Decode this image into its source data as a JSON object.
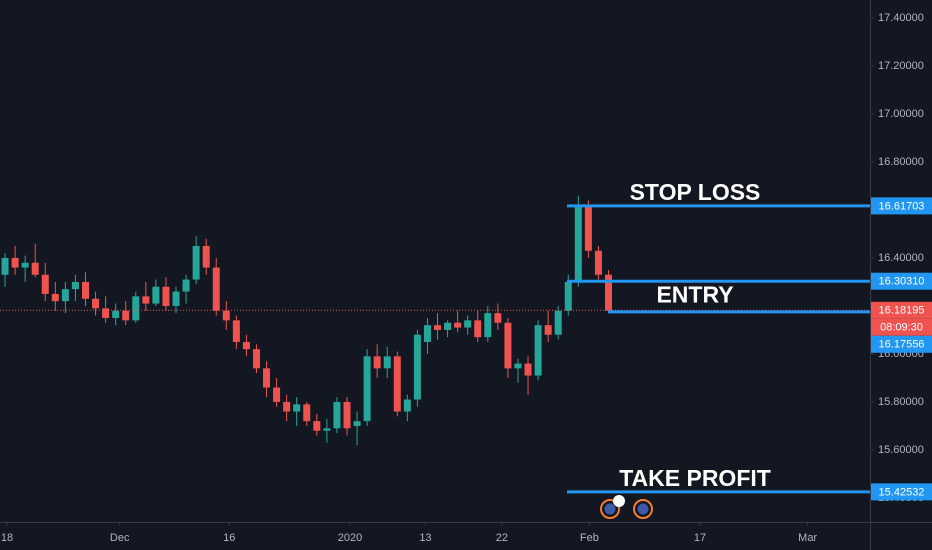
{
  "chart_data": {
    "type": "candlestick",
    "x": [
      0,
      1,
      2,
      3,
      4,
      5,
      6,
      7,
      8,
      9,
      10,
      11,
      12,
      13,
      14,
      15,
      16,
      17,
      18,
      19,
      20,
      21,
      22,
      23,
      24,
      25,
      26,
      27,
      28,
      29,
      30,
      31,
      32,
      33,
      34,
      35,
      36,
      37,
      38,
      39,
      40,
      41,
      42,
      43,
      44,
      45,
      46,
      47,
      48,
      49,
      50,
      51,
      52,
      53,
      54,
      55,
      56,
      57,
      58,
      59,
      60
    ],
    "open": [
      16.33,
      16.4,
      16.36,
      16.38,
      16.33,
      16.25,
      16.22,
      16.27,
      16.3,
      16.23,
      16.19,
      16.15,
      16.18,
      16.14,
      16.24,
      16.21,
      16.28,
      16.2,
      16.26,
      16.31,
      16.45,
      16.36,
      16.18,
      16.14,
      16.05,
      16.02,
      15.94,
      15.86,
      15.8,
      15.76,
      15.79,
      15.72,
      15.68,
      15.69,
      15.8,
      15.7,
      15.72,
      15.99,
      15.94,
      15.99,
      15.76,
      15.81,
      16.05,
      16.12,
      16.1,
      16.13,
      16.11,
      16.14,
      16.07,
      16.17,
      16.13,
      15.94,
      15.96,
      15.91,
      16.12,
      16.08,
      16.18,
      16.3,
      16.62,
      16.43,
      16.33
    ],
    "high": [
      16.42,
      16.45,
      16.41,
      16.46,
      16.38,
      16.3,
      16.3,
      16.33,
      16.34,
      16.26,
      16.24,
      16.21,
      16.22,
      16.26,
      16.3,
      16.31,
      16.32,
      16.28,
      16.33,
      16.49,
      16.48,
      16.4,
      16.22,
      16.16,
      16.08,
      16.04,
      15.97,
      15.9,
      15.83,
      15.82,
      15.8,
      15.75,
      15.73,
      15.82,
      15.82,
      15.76,
      16.02,
      16.04,
      16.03,
      16.01,
      15.83,
      16.1,
      16.15,
      16.17,
      16.14,
      16.18,
      16.16,
      16.18,
      16.2,
      16.21,
      16.15,
      15.98,
      15.99,
      16.14,
      16.18,
      16.2,
      16.33,
      16.66,
      16.64,
      16.45,
      16.35
    ],
    "low": [
      16.28,
      16.33,
      16.3,
      16.32,
      16.22,
      16.18,
      16.17,
      16.22,
      16.2,
      16.16,
      16.13,
      16.12,
      16.12,
      16.13,
      16.18,
      16.2,
      16.18,
      16.17,
      16.21,
      16.29,
      16.33,
      16.16,
      16.1,
      16.02,
      15.99,
      15.92,
      15.82,
      15.78,
      15.72,
      15.7,
      15.7,
      15.66,
      15.63,
      15.67,
      15.66,
      15.62,
      15.7,
      15.9,
      15.9,
      15.74,
      15.72,
      15.78,
      16.0,
      16.06,
      16.07,
      16.09,
      16.08,
      16.05,
      16.05,
      16.1,
      15.9,
      15.88,
      15.83,
      15.89,
      16.05,
      16.06,
      16.16,
      16.28,
      16.4,
      16.31,
      16.17
    ],
    "close": [
      16.4,
      16.36,
      16.38,
      16.33,
      16.25,
      16.22,
      16.27,
      16.3,
      16.23,
      16.19,
      16.15,
      16.18,
      16.14,
      16.24,
      16.21,
      16.28,
      16.2,
      16.26,
      16.31,
      16.45,
      16.36,
      16.18,
      16.14,
      16.05,
      16.02,
      15.94,
      15.86,
      15.8,
      15.76,
      15.79,
      15.72,
      15.68,
      15.69,
      15.8,
      15.69,
      15.72,
      15.99,
      15.94,
      15.99,
      15.76,
      15.81,
      16.08,
      16.12,
      16.1,
      16.13,
      16.11,
      16.14,
      16.07,
      16.17,
      16.13,
      15.94,
      15.96,
      15.91,
      16.12,
      16.08,
      16.18,
      16.3,
      16.62,
      16.43,
      16.33,
      16.18
    ],
    "up_color": "#26a69a",
    "down_color": "#ef5350",
    "ylim": [
      15.308,
      17.475
    ],
    "yticks": [
      {
        "value": 17.4,
        "label": "17.40000"
      },
      {
        "value": 17.2,
        "label": "17.20000"
      },
      {
        "value": 17.0,
        "label": "17.00000"
      },
      {
        "value": 16.8,
        "label": "16.80000"
      },
      {
        "value": 16.4,
        "label": "16.40000"
      },
      {
        "value": 16.0,
        "label": "16.00000"
      },
      {
        "value": 15.8,
        "label": "15.80000"
      },
      {
        "value": 15.6,
        "label": "15.60000"
      },
      {
        "value": 15.4,
        "label": "15.40000"
      }
    ],
    "xlim": [
      -0.5,
      86
    ],
    "xticks": [
      {
        "value": 0.2,
        "label": "18"
      },
      {
        "value": 11.4,
        "label": "Dec"
      },
      {
        "value": 22.3,
        "label": "16"
      },
      {
        "value": 34.3,
        "label": "2020"
      },
      {
        "value": 41.8,
        "label": "13"
      },
      {
        "value": 49.4,
        "label": "22"
      },
      {
        "value": 58.1,
        "label": "Feb"
      },
      {
        "value": 69.1,
        "label": "17"
      },
      {
        "value": 79.8,
        "label": "Mar"
      }
    ],
    "level_color": "#2196f3",
    "levels": [
      {
        "text": "STOP LOSS",
        "value": 16.61703,
        "value_label": "16.61703"
      },
      {
        "text": "ENTRY",
        "value": 16.3031,
        "value_label": "16.30310"
      },
      {
        "value": 16.17556,
        "value_label": "16.17556"
      },
      {
        "text": "TAKE PROFIT",
        "value": 15.42532,
        "value_label": "15.42532"
      }
    ],
    "current_price": {
      "value": 16.18195,
      "value_label": "16.18195",
      "countdown": "08:09:30",
      "color": "#ef5350"
    },
    "events": {
      "badge": "3"
    }
  }
}
